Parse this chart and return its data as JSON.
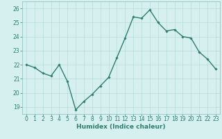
{
  "x": [
    0,
    1,
    2,
    3,
    4,
    5,
    6,
    7,
    8,
    9,
    10,
    11,
    12,
    13,
    14,
    15,
    16,
    17,
    18,
    19,
    20,
    21,
    22,
    23
  ],
  "y": [
    22.0,
    21.8,
    21.4,
    21.2,
    22.0,
    20.8,
    18.8,
    19.4,
    19.9,
    20.5,
    21.1,
    22.5,
    23.9,
    25.4,
    25.3,
    25.9,
    25.0,
    24.4,
    24.5,
    24.0,
    23.9,
    22.9,
    22.4,
    21.7
  ],
  "line_color": "#2d7d6e",
  "marker": "D",
  "markersize": 1.8,
  "linewidth": 1.0,
  "xlabel": "Humidex (Indice chaleur)",
  "xlabel_fontsize": 6.5,
  "xlabel_color": "#2d7d6e",
  "tick_fontsize": 5.5,
  "tick_color": "#2d7d6e",
  "ylim": [
    18.5,
    26.5
  ],
  "xlim": [
    -0.5,
    23.5
  ],
  "yticks": [
    19,
    20,
    21,
    22,
    23,
    24,
    25,
    26
  ],
  "xticks": [
    0,
    1,
    2,
    3,
    4,
    5,
    6,
    7,
    8,
    9,
    10,
    11,
    12,
    13,
    14,
    15,
    16,
    17,
    18,
    19,
    20,
    21,
    22,
    23
  ],
  "background_color": "#d5f0ee",
  "grid_color": "#b8dbd8",
  "spine_color": "#8abcb8"
}
